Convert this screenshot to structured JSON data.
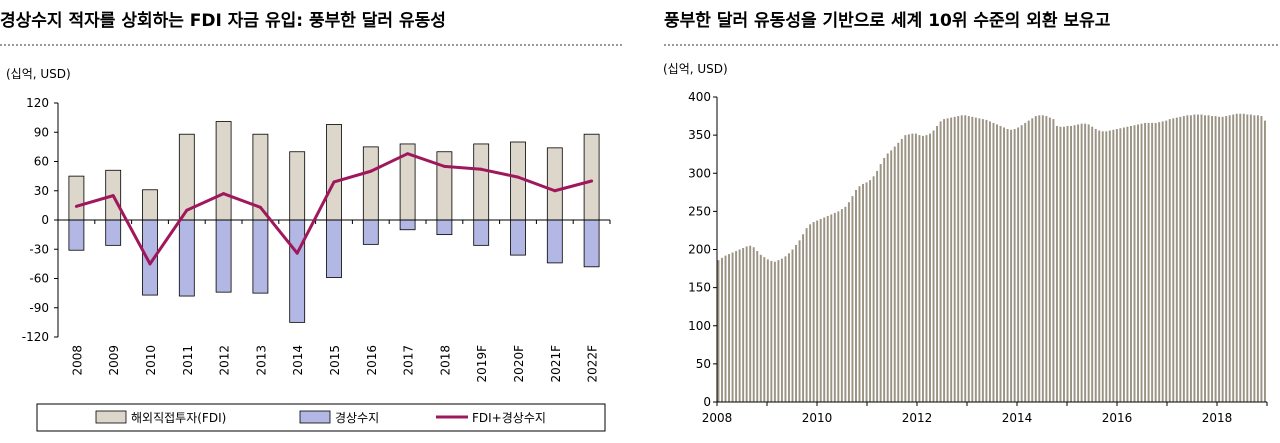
{
  "panels": {
    "left": {
      "title": "경상수지 적자를 상회하는 FDI 자금 유입: 풍부한 달러 유동성",
      "unit": "(십억, USD)"
    },
    "right": {
      "title": "풍부한 달러 유동성을 기반으로 세계 10위 수준의 외환 보유고",
      "unit": "(십억, USD)"
    }
  },
  "colors": {
    "fdi_bar": "#ddd6cb",
    "ca_bar": "#b3b7e3",
    "line": "#a0185c",
    "reserves_bar": "#9b9383"
  },
  "chart_data": [
    {
      "type": "bar",
      "categories": [
        "2008",
        "2009",
        "2010",
        "2011",
        "2012",
        "2013",
        "2014",
        "2015",
        "2016",
        "2017",
        "2018",
        "2019F",
        "2020F",
        "2021F",
        "2022F"
      ],
      "series": [
        {
          "name": "해외직접투자(FDI)",
          "type": "bar",
          "values": [
            45,
            51,
            31,
            88,
            101,
            88,
            70,
            98,
            75,
            78,
            70,
            78,
            80,
            74,
            88
          ]
        },
        {
          "name": "경상수지",
          "type": "bar",
          "values": [
            -31,
            -26,
            -77,
            -78,
            -74,
            -75,
            -105,
            -59,
            -25,
            -10,
            -15,
            -26,
            -36,
            -44,
            -48
          ]
        },
        {
          "name": "FDI+경상수지",
          "type": "line",
          "values": [
            14,
            25,
            -45,
            10,
            27,
            13,
            -34,
            39,
            50,
            68,
            55,
            52,
            44,
            30,
            40
          ]
        }
      ],
      "ylim": [
        -120,
        120
      ],
      "yticks": [
        120,
        90,
        60,
        30,
        0,
        -30,
        -60,
        -90,
        -120
      ],
      "legend_position": "bottom"
    },
    {
      "type": "bar",
      "xlim": [
        2008,
        2019
      ],
      "ylim": [
        0,
        400
      ],
      "yticks": [
        400,
        350,
        300,
        250,
        200,
        150,
        100,
        50,
        0
      ],
      "xticks": [
        "2008",
        "2010",
        "2012",
        "2014",
        "2016",
        "2018"
      ],
      "series": [
        {
          "values": [
            186,
            189,
            192,
            194,
            196,
            198,
            200,
            202,
            204,
            205,
            203,
            198,
            193,
            190,
            187,
            185,
            184,
            186,
            188,
            191,
            195,
            200,
            206,
            212,
            220,
            228,
            233,
            236,
            238,
            240,
            242,
            244,
            246,
            248,
            250,
            253,
            256,
            262,
            270,
            278,
            283,
            286,
            288,
            291,
            296,
            303,
            312,
            320,
            326,
            330,
            335,
            340,
            345,
            350,
            351,
            352,
            352,
            350,
            349,
            350,
            352,
            356,
            362,
            368,
            371,
            372,
            373,
            374,
            375,
            376,
            376,
            375,
            374,
            373,
            372,
            371,
            370,
            368,
            366,
            364,
            362,
            360,
            358,
            357,
            358,
            360,
            363,
            366,
            369,
            372,
            375,
            376,
            376,
            375,
            373,
            371,
            362,
            361,
            361,
            362,
            362,
            363,
            364,
            365,
            365,
            364,
            361,
            358,
            356,
            355,
            355,
            356,
            357,
            358,
            359,
            360,
            361,
            362,
            363,
            364,
            365,
            366,
            366,
            366,
            366,
            367,
            368,
            369,
            371,
            372,
            373,
            374,
            375,
            376,
            376,
            377,
            377,
            377,
            376,
            376,
            375,
            375,
            374,
            374,
            375,
            376,
            377,
            378,
            378,
            378,
            377,
            377,
            376,
            376,
            375,
            369
          ]
        }
      ]
    }
  ]
}
